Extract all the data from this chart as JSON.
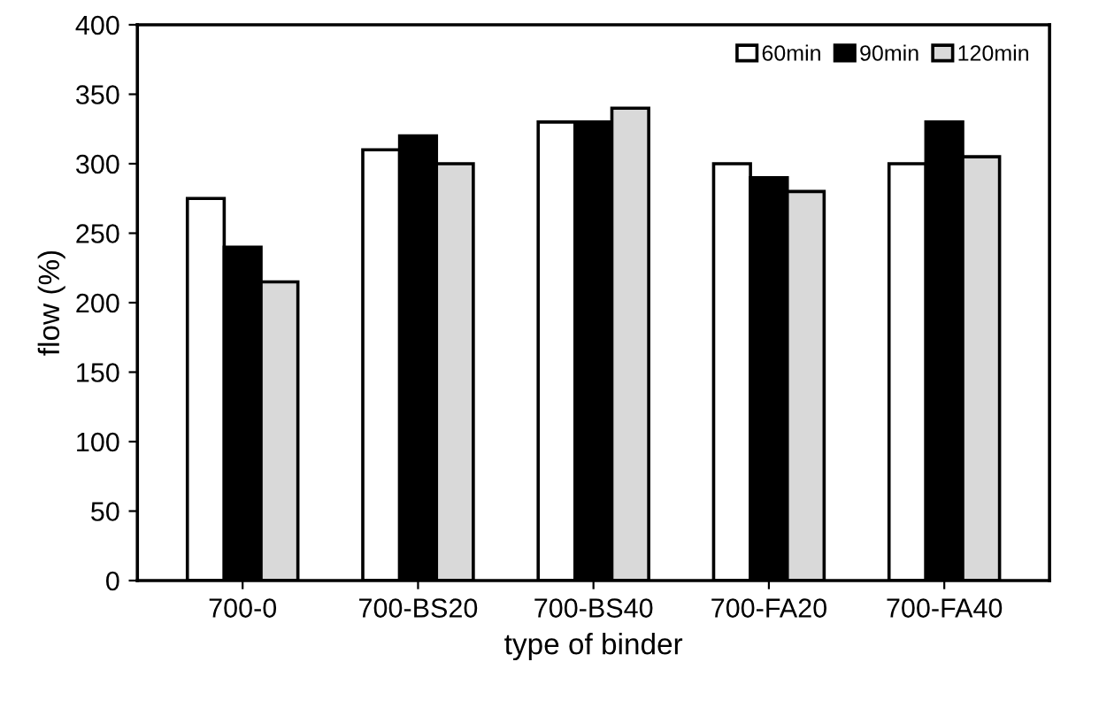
{
  "chart_data": {
    "type": "bar",
    "xlabel": "type of binder",
    "ylabel": "flow (%)",
    "categories": [
      "700-0",
      "700-BS20",
      "700-BS40",
      "700-FA20",
      "700-FA40"
    ],
    "series": [
      {
        "name": "60min",
        "color": "#ffffff",
        "values": [
          275,
          310,
          330,
          300,
          300
        ]
      },
      {
        "name": "90min",
        "color": "#000000",
        "values": [
          240,
          320,
          330,
          290,
          330
        ]
      },
      {
        "name": "120min",
        "color": "#d9d9d9",
        "values": [
          215,
          300,
          340,
          280,
          305
        ]
      }
    ],
    "ylim": [
      0,
      400
    ],
    "yticks": [
      0,
      50,
      100,
      150,
      200,
      250,
      300,
      350,
      400
    ],
    "grid": false,
    "legend": "top right"
  }
}
